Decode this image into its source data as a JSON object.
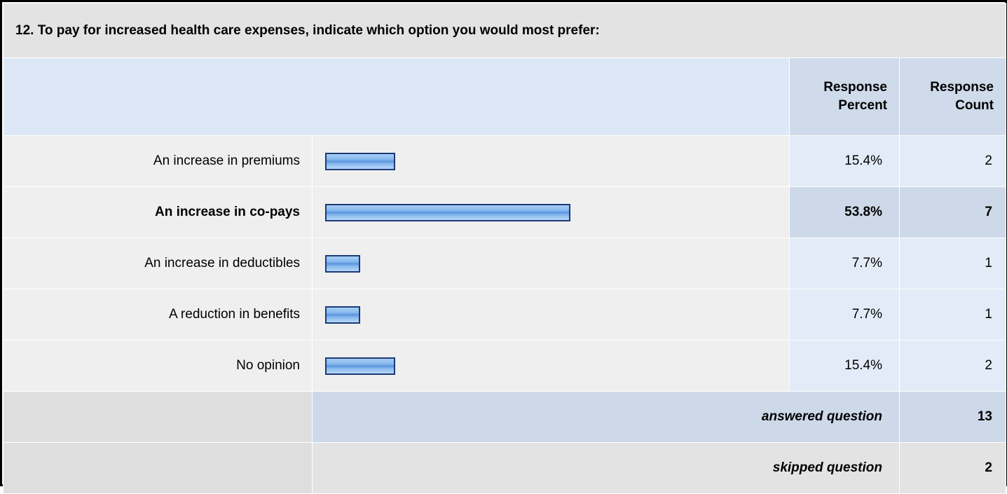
{
  "question": {
    "title": "12. To pay for increased health care expenses, indicate which option you would most prefer:"
  },
  "header": {
    "percent_line1": "Response",
    "percent_line2": "Percent",
    "count_line1": "Response",
    "count_line2": "Count"
  },
  "answers": [
    {
      "label": "An increase in premiums",
      "percent_text": "15.4%",
      "count_text": "2",
      "percent": 15.4,
      "highlight": false
    },
    {
      "label": "An increase in co-pays",
      "percent_text": "53.8%",
      "count_text": "7",
      "percent": 53.8,
      "highlight": true
    },
    {
      "label": "An increase in deductibles",
      "percent_text": "7.7%",
      "count_text": "1",
      "percent": 7.7,
      "highlight": false
    },
    {
      "label": "A reduction in benefits",
      "percent_text": "7.7%",
      "count_text": "1",
      "percent": 7.7,
      "highlight": false
    },
    {
      "label": "No opinion",
      "percent_text": "15.4%",
      "count_text": "2",
      "percent": 15.4,
      "highlight": false
    }
  ],
  "summary": {
    "answered_label": "answered question",
    "answered_value": "13",
    "skipped_label": "skipped question",
    "skipped_value": "2"
  },
  "colors": {
    "bar_fill": "#86b8ee",
    "bar_border": "#1b3a78",
    "header_bg": "#cfdaea",
    "highlight_bg": "#cdd9e8"
  }
}
